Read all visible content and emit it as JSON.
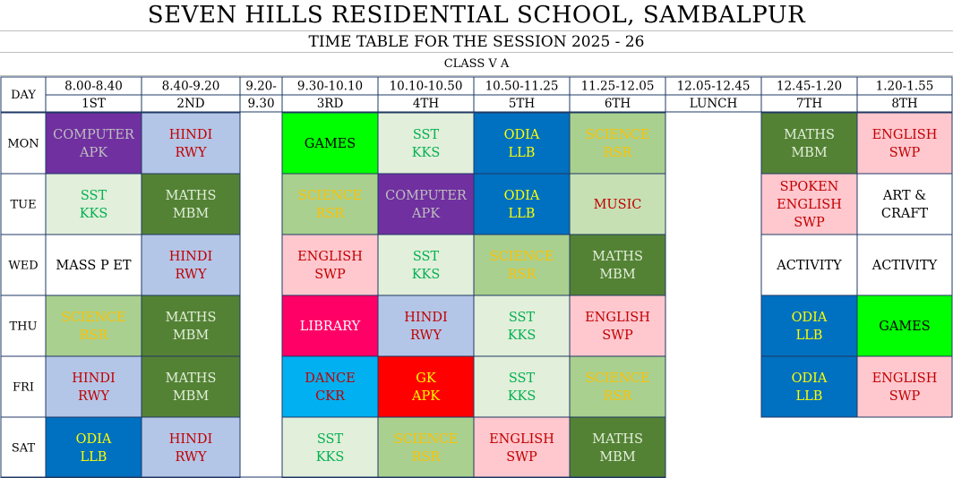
{
  "title": "SEVEN HILLS RESIDENTIAL SCHOOL, SAMBALPUR",
  "subtitle": "TIME TABLE FOR THE SESSION 2025 - 26",
  "class_name": "CLASS V A",
  "day_label": "DAY",
  "colors": {
    "computer_bg": "#7030A0",
    "computer_fg": "#BFBFBF",
    "hindi_bg": "#B4C6E7",
    "hindi_fg": "#C00000",
    "games_bg": "#00FF00",
    "games_fg": "#000000",
    "sst_bg": "#E2EFDA",
    "sst_fg": "#00B050",
    "odia_bg": "#0070C0",
    "odia_fg": "#FFFF00",
    "science_bg": "#A9D08E",
    "science_fg": "#FFC000",
    "maths_bg": "#548235",
    "maths_fg": "#E2EFDA",
    "english_bg": "#FFC7CE",
    "english_fg": "#C00000",
    "music_bg": "#C6E0B4",
    "music_fg": "#C00000",
    "library_bg": "#FF0066",
    "library_fg": "#FFFFFF",
    "dance_bg": "#00B0F0",
    "dance_fg": "#C00000",
    "gk_bg": "#FF0000",
    "gk_fg": "#FFFF00",
    "plain_bg": "#FFFFFF",
    "plain_fg": "#000000",
    "border": "#1F3864"
  },
  "slots": [
    {
      "time": "8.00-8.40",
      "period": "1ST"
    },
    {
      "time": "8.40-9.20",
      "period": "2ND"
    },
    {
      "time": "9.20-",
      "period": "9.30"
    },
    {
      "time": "9.30-10.10",
      "period": "3RD"
    },
    {
      "time": "10.10-10.50",
      "period": "4TH"
    },
    {
      "time": "10.50-11.25",
      "period": "5TH"
    },
    {
      "time": "11.25-12.05",
      "period": "6TH"
    },
    {
      "time": "12.05-12.45",
      "period": "LUNCH"
    },
    {
      "time": "12.45-1.20",
      "period": "7TH"
    },
    {
      "time": "1.20-1.55",
      "period": "8TH"
    }
  ],
  "rows": [
    {
      "day": "MON",
      "cells": [
        {
          "col": 0,
          "lines": [
            "COMPUTER",
            "APK"
          ],
          "style": "computer"
        },
        {
          "col": 1,
          "lines": [
            "HINDI",
            "RWY"
          ],
          "style": "hindi"
        },
        {
          "col": 3,
          "lines": [
            "GAMES"
          ],
          "style": "games"
        },
        {
          "col": 4,
          "lines": [
            "SST",
            "KKS"
          ],
          "style": "sst"
        },
        {
          "col": 5,
          "lines": [
            "ODIA",
            "LLB"
          ],
          "style": "odia"
        },
        {
          "col": 6,
          "lines": [
            "SCIENCE",
            "RSR"
          ],
          "style": "science"
        },
        {
          "col": 8,
          "lines": [
            "MATHS",
            "MBM"
          ],
          "style": "maths"
        },
        {
          "col": 9,
          "lines": [
            "ENGLISH",
            "SWP"
          ],
          "style": "english"
        }
      ]
    },
    {
      "day": "TUE",
      "cells": [
        {
          "col": 0,
          "lines": [
            "SST",
            "KKS"
          ],
          "style": "sst"
        },
        {
          "col": 1,
          "lines": [
            "MATHS",
            "MBM"
          ],
          "style": "maths"
        },
        {
          "col": 3,
          "lines": [
            "SCIENCE",
            "RSR"
          ],
          "style": "science"
        },
        {
          "col": 4,
          "lines": [
            "COMPUTER",
            "APK"
          ],
          "style": "computer"
        },
        {
          "col": 5,
          "lines": [
            "ODIA",
            "LLB"
          ],
          "style": "odia"
        },
        {
          "col": 6,
          "lines": [
            "MUSIC"
          ],
          "style": "music"
        },
        {
          "col": 8,
          "lines": [
            "SPOKEN",
            "ENGLISH",
            "SWP"
          ],
          "style": "english"
        },
        {
          "col": 9,
          "lines": [
            "ART &",
            "CRAFT"
          ],
          "style": "plain"
        }
      ]
    },
    {
      "day": "WED",
      "cells": [
        {
          "col": 0,
          "lines": [
            "MASS P ET"
          ],
          "style": "plain"
        },
        {
          "col": 1,
          "lines": [
            "HINDI",
            "RWY"
          ],
          "style": "hindi"
        },
        {
          "col": 3,
          "lines": [
            "ENGLISH",
            "SWP"
          ],
          "style": "english"
        },
        {
          "col": 4,
          "lines": [
            "SST",
            "KKS"
          ],
          "style": "sst"
        },
        {
          "col": 5,
          "lines": [
            "SCIENCE",
            "RSR"
          ],
          "style": "science"
        },
        {
          "col": 6,
          "lines": [
            "MATHS",
            "MBM"
          ],
          "style": "maths"
        },
        {
          "col": 8,
          "lines": [
            "ACTIVITY"
          ],
          "style": "plain"
        },
        {
          "col": 9,
          "lines": [
            "ACTIVITY"
          ],
          "style": "plain"
        }
      ]
    },
    {
      "day": "THU",
      "cells": [
        {
          "col": 0,
          "lines": [
            "SCIENCE",
            "RSR"
          ],
          "style": "science"
        },
        {
          "col": 1,
          "lines": [
            "MATHS",
            "MBM"
          ],
          "style": "maths"
        },
        {
          "col": 3,
          "lines": [
            "LIBRARY"
          ],
          "style": "library"
        },
        {
          "col": 4,
          "lines": [
            "HINDI",
            "RWY"
          ],
          "style": "hindi"
        },
        {
          "col": 5,
          "lines": [
            "SST",
            "KKS"
          ],
          "style": "sst"
        },
        {
          "col": 6,
          "lines": [
            "ENGLISH",
            "SWP"
          ],
          "style": "english"
        },
        {
          "col": 8,
          "lines": [
            "ODIA",
            "LLB"
          ],
          "style": "odia"
        },
        {
          "col": 9,
          "lines": [
            "GAMES"
          ],
          "style": "games"
        }
      ]
    },
    {
      "day": "FRI",
      "cells": [
        {
          "col": 0,
          "lines": [
            "HINDI",
            "RWY"
          ],
          "style": "hindi"
        },
        {
          "col": 1,
          "lines": [
            "MATHS",
            "MBM"
          ],
          "style": "maths"
        },
        {
          "col": 3,
          "lines": [
            "DANCE",
            "CKR"
          ],
          "style": "dance"
        },
        {
          "col": 4,
          "lines": [
            "GK",
            "APK"
          ],
          "style": "gk"
        },
        {
          "col": 5,
          "lines": [
            "SST",
            "KKS"
          ],
          "style": "sst"
        },
        {
          "col": 6,
          "lines": [
            "SCIENCE",
            "RSR"
          ],
          "style": "science"
        },
        {
          "col": 8,
          "lines": [
            "ODIA",
            "LLB"
          ],
          "style": "odia"
        },
        {
          "col": 9,
          "lines": [
            "ENGLISH",
            "SWP"
          ],
          "style": "english"
        }
      ]
    },
    {
      "day": "SAT",
      "cells": [
        {
          "col": 0,
          "lines": [
            "ODIA",
            "LLB"
          ],
          "style": "odia"
        },
        {
          "col": 1,
          "lines": [
            "HINDI",
            "RWY"
          ],
          "style": "hindi"
        },
        {
          "col": 3,
          "lines": [
            "SST",
            "KKS"
          ],
          "style": "sst"
        },
        {
          "col": 4,
          "lines": [
            "SCIENCE",
            "RSR"
          ],
          "style": "science"
        },
        {
          "col": 5,
          "lines": [
            "ENGLISH",
            "SWP"
          ],
          "style": "english"
        },
        {
          "col": 6,
          "lines": [
            "MATHS",
            "MBM"
          ],
          "style": "maths"
        }
      ]
    }
  ]
}
